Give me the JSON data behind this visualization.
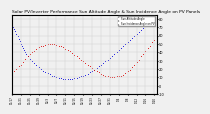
{
  "title": "Solar PV/Inverter Performance Sun Altitude Angle & Sun Incidence Angle on PV Panels",
  "title_fontsize": 3.2,
  "bg_color": "#f0f0f0",
  "grid_color": "#cccccc",
  "blue_color": "#0000dd",
  "red_color": "#dd0000",
  "legend_blue": "Sun Altitude Angle",
  "legend_red": "Sun Incidence Angle on PV",
  "ylim": [
    -10,
    85
  ],
  "xlim": [
    0,
    65
  ],
  "yticks": [
    -10,
    0,
    10,
    20,
    30,
    40,
    50,
    60,
    70,
    80
  ],
  "ytick_labels": [
    "-10",
    "0",
    "10",
    "20",
    "30",
    "40",
    "50",
    "60",
    "70",
    "80"
  ],
  "xtick_positions": [
    0,
    4,
    8,
    12,
    16,
    20,
    24,
    28,
    32,
    36,
    40,
    44,
    48,
    52,
    56,
    60,
    64
  ],
  "xtick_labels": [
    "11/17",
    "11/21",
    "11/25",
    "11/29",
    "12/3",
    "12/7",
    "12/11",
    "12/15",
    "12/19",
    "12/23",
    "12/27",
    "12/31",
    "1/4",
    "1/8",
    "1/12",
    "1/16",
    "1/20"
  ],
  "blue_x": [
    0,
    0.2,
    0.5,
    1,
    1.5,
    2,
    2.5,
    3,
    3.5,
    4,
    4.5,
    5,
    5.5,
    6,
    6.5,
    7,
    8,
    9,
    10,
    11,
    12,
    13,
    14,
    15,
    16,
    17,
    18,
    19,
    20,
    21,
    22,
    23,
    24,
    25,
    26,
    27,
    28,
    29,
    30,
    31,
    32,
    33,
    34,
    35,
    36,
    37,
    38,
    39,
    40,
    41,
    42,
    43,
    44,
    45,
    46,
    47,
    48,
    49,
    50,
    51,
    52,
    53,
    54,
    55,
    56,
    57,
    58,
    59,
    60,
    61,
    62,
    63,
    64
  ],
  "blue_y": [
    75,
    73,
    70,
    68,
    65,
    62,
    59,
    56,
    53,
    50,
    48,
    45,
    43,
    40,
    38,
    35,
    32,
    29,
    27,
    25,
    22,
    20,
    18,
    16,
    15,
    14,
    12,
    11,
    10,
    9,
    9,
    8,
    8,
    8,
    8,
    8,
    9,
    9,
    10,
    11,
    12,
    13,
    14,
    16,
    17,
    19,
    21,
    23,
    25,
    27,
    29,
    31,
    33,
    35,
    38,
    40,
    43,
    45,
    48,
    50,
    52,
    55,
    57,
    60,
    62,
    64,
    67,
    69,
    71,
    72,
    73,
    75,
    76
  ],
  "red_x": [
    0,
    1,
    2,
    3,
    4,
    5,
    6,
    7,
    8,
    9,
    10,
    11,
    12,
    13,
    14,
    15,
    16,
    17,
    18,
    19,
    20,
    21,
    22,
    23,
    24,
    25,
    26,
    27,
    28,
    29,
    30,
    31,
    32,
    33,
    34,
    35,
    36,
    37,
    38,
    39,
    40,
    41,
    42,
    43,
    44,
    45,
    46,
    47,
    48,
    49,
    50,
    51,
    52,
    53,
    54,
    55,
    56,
    57,
    58,
    59,
    60,
    61,
    62,
    63,
    64
  ],
  "red_y": [
    15,
    18,
    20,
    23,
    25,
    28,
    32,
    35,
    38,
    40,
    42,
    44,
    46,
    47,
    48,
    49,
    50,
    50,
    50,
    50,
    49,
    48,
    47,
    46,
    44,
    43,
    41,
    39,
    37,
    35,
    33,
    31,
    29,
    27,
    25,
    23,
    21,
    19,
    17,
    16,
    14,
    13,
    12,
    11,
    10,
    10,
    10,
    11,
    11,
    12,
    13,
    15,
    17,
    19,
    22,
    25,
    28,
    31,
    35,
    38,
    42,
    45,
    48,
    52,
    55
  ]
}
